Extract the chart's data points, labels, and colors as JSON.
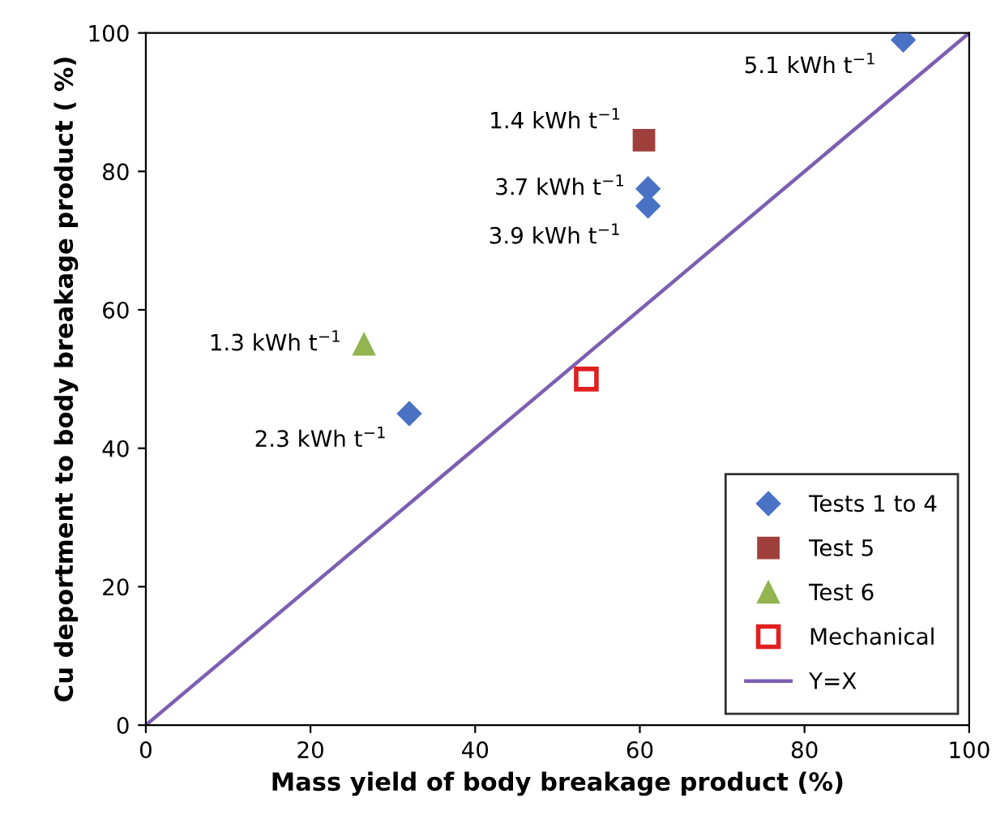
{
  "chart_data": {
    "type": "scatter",
    "xlabel": "Mass yield of body breakage product (%)",
    "ylabel": "Cu deportment to body breakage product ( %)",
    "xlim": [
      0,
      100
    ],
    "ylim": [
      0,
      100
    ],
    "xticks": [
      0,
      20,
      40,
      60,
      80,
      100
    ],
    "yticks": [
      0,
      20,
      40,
      60,
      80,
      100
    ],
    "grid": false,
    "legend": "bottom right",
    "series": [
      {
        "name": "Tests 1 to 4",
        "color": "#4a72c4",
        "marker": "diamond",
        "x": [
          92,
          61,
          61,
          32
        ],
        "values": [
          99,
          77.5,
          75,
          45
        ]
      },
      {
        "name": "Test 5",
        "color": "#a0403c",
        "marker": "square",
        "x": [
          60.5
        ],
        "values": [
          84.5
        ]
      },
      {
        "name": "Test 6",
        "color": "#92b451",
        "marker": "triangle",
        "x": [
          26.5
        ],
        "values": [
          55
        ]
      },
      {
        "name": "Mechanical",
        "color": "#e02020",
        "marker": "square",
        "x": [
          53.5
        ],
        "values": [
          50
        ]
      },
      {
        "name": "Y=X",
        "type": "line",
        "color": "#7b5fb0",
        "marker": "none",
        "x": [
          0,
          100
        ],
        "values": [
          0,
          100
        ]
      }
    ],
    "annotations": [
      {
        "text": "5.1 kWh t$^{−1}$",
        "x": 92,
        "y": 99
      },
      {
        "text": "1.4 kWh t$^{−1}$",
        "x": 60.5,
        "y": 84.5
      },
      {
        "text": "3.7 kWh t$^{−1}$",
        "x": 61,
        "y": 77.5
      },
      {
        "text": "3.9 kWh t$^{−1}$",
        "x": 61,
        "y": 75
      },
      {
        "text": "1.3 kWh t$^{−1}$",
        "x": 26.5,
        "y": 55
      },
      {
        "text": "2.3 kWh t$^{−1}$",
        "x": 32,
        "y": 45
      }
    ]
  }
}
